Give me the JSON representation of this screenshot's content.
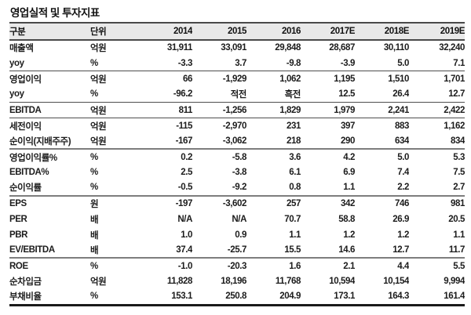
{
  "title": "영업실적 및 투자지표",
  "colors": {
    "header_bg": "#e9e9e9",
    "text": "#1c1c1c",
    "rule_dark": "#4a4a4a",
    "rule_gray": "#7d7d7d",
    "bottom_rule": "#1a1a1a"
  },
  "table": {
    "columns": [
      "구분",
      "단위",
      "2014",
      "2015",
      "2016",
      "2017E",
      "2018E",
      "2019E"
    ],
    "rows": [
      {
        "label": "매출액",
        "unit": "억원",
        "indent": 0,
        "rule_after": null,
        "values": [
          "31,911",
          "33,091",
          "29,848",
          "28,687",
          "30,110",
          "32,240"
        ]
      },
      {
        "label": "yoy",
        "unit": "%",
        "indent": 1,
        "rule_after": "group",
        "values": [
          "-3.3",
          "3.7",
          "-9.8",
          "-3.9",
          "5.0",
          "7.1"
        ]
      },
      {
        "label": "영업이익",
        "unit": "억원",
        "indent": 0,
        "rule_after": null,
        "values": [
          "66",
          "-1,929",
          "1,062",
          "1,195",
          "1,510",
          "1,701"
        ]
      },
      {
        "label": "yoy",
        "unit": "%",
        "indent": 1,
        "rule_after": "group",
        "values": [
          "-96.2",
          "적전",
          "흑전",
          "12.5",
          "26.4",
          "12.7"
        ]
      },
      {
        "label": "EBITDA",
        "unit": "억원",
        "indent": 0,
        "rule_after": "group",
        "values": [
          "811",
          "-1,256",
          "1,829",
          "1,979",
          "2,241",
          "2,422"
        ]
      },
      {
        "label": "세전이익",
        "unit": "억원",
        "indent": 0,
        "rule_after": null,
        "values": [
          "-115",
          "-2,970",
          "231",
          "397",
          "883",
          "1,162"
        ]
      },
      {
        "label": "순이익(지배주주)",
        "unit": "억원",
        "indent": 0,
        "rule_after": "section",
        "values": [
          "-167",
          "-3,062",
          "218",
          "290",
          "634",
          "834"
        ]
      },
      {
        "label": "영업이익률%",
        "unit": "%",
        "indent": 2,
        "rule_after": null,
        "values": [
          "0.2",
          "-5.8",
          "3.6",
          "4.2",
          "5.0",
          "5.3"
        ]
      },
      {
        "label": "EBITDA%",
        "unit": "%",
        "indent": 2,
        "rule_after": null,
        "values": [
          "2.5",
          "-3.8",
          "6.1",
          "6.9",
          "7.4",
          "7.5"
        ]
      },
      {
        "label": "순이익률",
        "unit": "%",
        "indent": 2,
        "rule_after": "section",
        "values": [
          "-0.5",
          "-9.2",
          "0.8",
          "1.1",
          "2.2",
          "2.7"
        ]
      },
      {
        "label": "EPS",
        "unit": "원",
        "indent": 0,
        "rule_after": null,
        "values": [
          "-197",
          "-3,602",
          "257",
          "342",
          "746",
          "981"
        ]
      },
      {
        "label": "PER",
        "unit": "배",
        "indent": 0,
        "rule_after": null,
        "values": [
          "N/A",
          "N/A",
          "70.7",
          "58.8",
          "26.9",
          "20.5"
        ]
      },
      {
        "label": "PBR",
        "unit": "배",
        "indent": 0,
        "rule_after": null,
        "values": [
          "1.0",
          "0.9",
          "1.1",
          "1.2",
          "1.2",
          "1.1"
        ]
      },
      {
        "label": "EV/EBITDA",
        "unit": "배",
        "indent": 0,
        "rule_after": "section",
        "values": [
          "37.4",
          "-25.7",
          "15.5",
          "14.6",
          "12.7",
          "11.7"
        ]
      },
      {
        "label": "ROE",
        "unit": "%",
        "indent": 0,
        "rule_after": null,
        "values": [
          "-1.0",
          "-20.3",
          "1.6",
          "2.1",
          "4.4",
          "5.5"
        ]
      },
      {
        "label": "순차입금",
        "unit": "억원",
        "indent": 0,
        "rule_after": null,
        "values": [
          "11,828",
          "18,196",
          "11,768",
          "10,594",
          "10,154",
          "9,994"
        ]
      },
      {
        "label": "부채비율",
        "unit": "%",
        "indent": 0,
        "rule_after": null,
        "values": [
          "153.1",
          "250.8",
          "204.9",
          "173.1",
          "164.3",
          "161.4"
        ]
      }
    ]
  }
}
